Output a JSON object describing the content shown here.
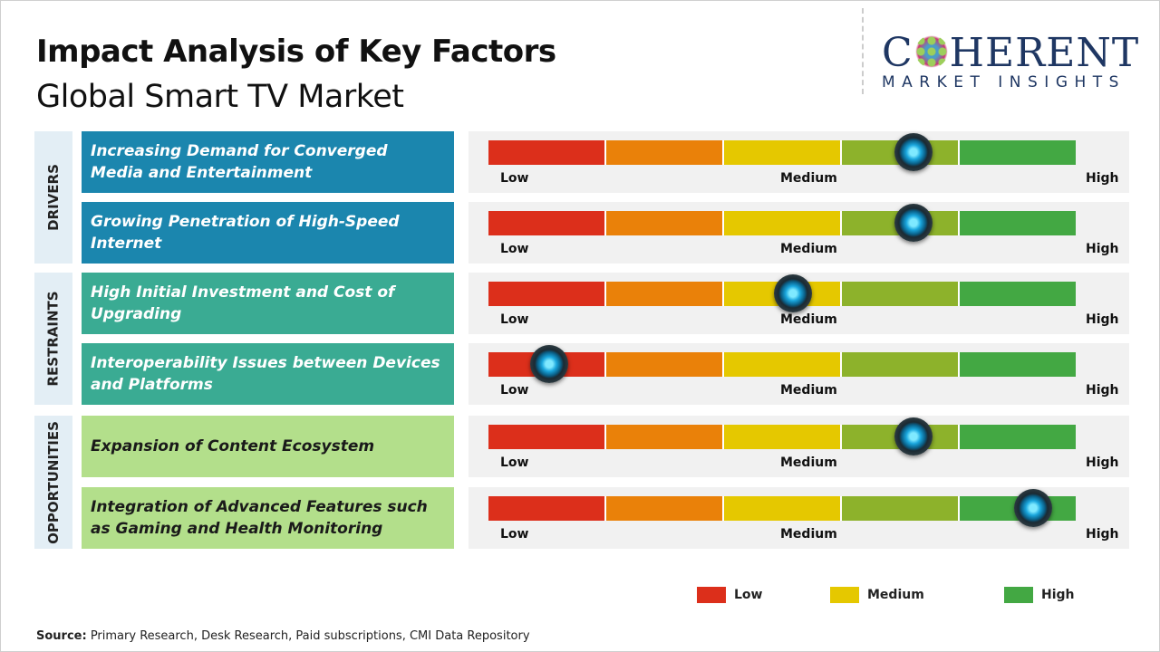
{
  "header": {
    "title": "Impact Analysis of Key Factors",
    "subtitle": "Global Smart TV Market"
  },
  "logo": {
    "main_left": "C",
    "main_right": "HERENT",
    "sub": "MARKET INSIGHTS"
  },
  "scale": {
    "low": "Low",
    "medium": "Medium",
    "high": "High",
    "segment_colors": [
      "#dc2f1b",
      "#ea8109",
      "#e5c800",
      "#8db22b",
      "#43a843"
    ]
  },
  "categories": [
    {
      "label": "DRIVERS",
      "color": "#1b86ae",
      "text_color": "#ffffff"
    },
    {
      "label": "RESTRAINTS",
      "color": "#3aab93",
      "text_color": "#ffffff"
    },
    {
      "label": "OPPORTUNITIES",
      "color": "#b3df8b",
      "text_color": "#1a1a1a"
    }
  ],
  "factors": [
    {
      "category": 0,
      "text": "Increasing Demand for Converged Media and Entertainment",
      "impact": 0.724
    },
    {
      "category": 0,
      "text": "Growing Penetration of High-Speed Internet",
      "impact": 0.724
    },
    {
      "category": 1,
      "text": "High Initial Investment and Cost of Upgrading",
      "impact": 0.519
    },
    {
      "category": 1,
      "text": "Interoperability Issues between Devices and Platforms",
      "impact": 0.103
    },
    {
      "category": 2,
      "text": "Expansion of Content Ecosystem",
      "impact": 0.724
    },
    {
      "category": 2,
      "text": "Integration of Advanced Features such as Gaming and Health Monitoring",
      "impact": 0.927
    }
  ],
  "legend": [
    {
      "label": "Low",
      "color": "#dc2f1b"
    },
    {
      "label": "Medium",
      "color": "#e5c800"
    },
    {
      "label": "High",
      "color": "#43a843"
    }
  ],
  "source": {
    "label": "Source:",
    "text": " Primary Research, Desk Research, Paid subscriptions, CMI Data Repository"
  }
}
